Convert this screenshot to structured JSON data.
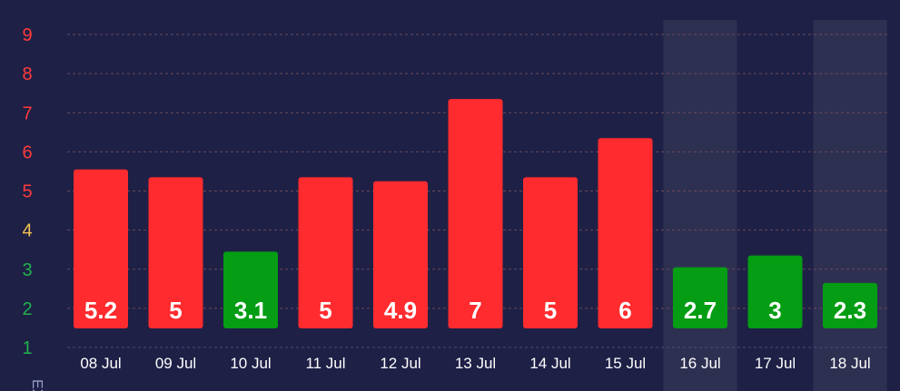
{
  "chart_data": {
    "type": "bar",
    "ylabel": "EX",
    "ylim": [
      1,
      9
    ],
    "yticks": [
      1,
      2,
      3,
      4,
      5,
      6,
      7,
      8,
      9
    ],
    "categories": [
      "08 Jul",
      "09 Jul",
      "10 Jul",
      "11 Jul",
      "12 Jul",
      "13 Jul",
      "14 Jul",
      "15 Jul",
      "16 Jul",
      "17 Jul",
      "18 Jul"
    ],
    "values": [
      5.2,
      5,
      3.1,
      5,
      4.9,
      7,
      5,
      6,
      2.7,
      3,
      2.3
    ],
    "highlighted_categories": [
      "16 Jul",
      "18 Jul"
    ],
    "grid": true,
    "legend": "none"
  },
  "colors": {
    "background": "#1e2046",
    "high_bar": "#ff2b2e",
    "low_bar": "#049d14",
    "tick_high": "#ff3b3b",
    "tick_mid": "#f0c050",
    "tick_low": "#22b14c",
    "highlight_band": "#2e3052",
    "gridline": "#6a4a58",
    "axis_line": "#4a4c78",
    "text": "#ffffff"
  }
}
